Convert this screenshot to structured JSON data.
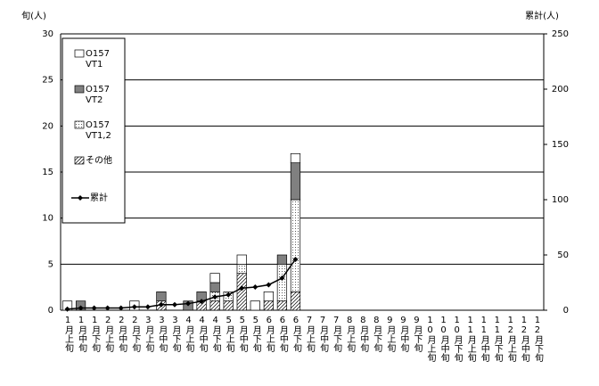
{
  "chart_data": {
    "type": "bar",
    "stacked": true,
    "y_label": "旬(人)",
    "y2_label": "累計(人)",
    "categories": [
      "1月上旬",
      "1月中旬",
      "1月下旬",
      "2月上旬",
      "2月中旬",
      "2月下旬",
      "3月上旬",
      "3月中旬",
      "3月下旬",
      "4月上旬",
      "4月中旬",
      "4月下旬",
      "5月上旬",
      "5月中旬",
      "5月下旬",
      "6月上旬",
      "6月中旬",
      "6月下旬",
      "7月上旬",
      "7月中旬",
      "7月下旬",
      "8月上旬",
      "8月中旬",
      "8月下旬",
      "9月上旬",
      "9月中旬",
      "9月下旬",
      "10月上旬",
      "10月中旬",
      "10月下旬",
      "11月上旬",
      "11月中旬",
      "11月下旬",
      "12月上旬",
      "12月中旬",
      "12月下旬"
    ],
    "series": [
      {
        "name": "その他",
        "color": "hatch",
        "values": [
          0,
          0,
          0,
          0,
          0,
          0,
          0,
          1,
          0,
          0,
          1,
          1,
          1,
          4,
          0,
          1,
          1,
          2,
          0,
          0,
          0,
          0,
          0,
          0,
          0,
          0,
          0,
          0,
          0,
          0,
          0,
          0,
          0,
          0,
          0,
          0
        ]
      },
      {
        "name": "O157 VT1,2",
        "color": "dots",
        "values": [
          0,
          0,
          0,
          0,
          0,
          0,
          0,
          0,
          0,
          0,
          0,
          1,
          1,
          1,
          0,
          0,
          4,
          10,
          0,
          0,
          0,
          0,
          0,
          0,
          0,
          0,
          0,
          0,
          0,
          0,
          0,
          0,
          0,
          0,
          0,
          0
        ]
      },
      {
        "name": "O157 VT2",
        "color": "#808080",
        "values": [
          0,
          1,
          0,
          0,
          0,
          0,
          0,
          1,
          0,
          1,
          1,
          1,
          0,
          0,
          0,
          0,
          1,
          4,
          0,
          0,
          0,
          0,
          0,
          0,
          0,
          0,
          0,
          0,
          0,
          0,
          0,
          0,
          0,
          0,
          0,
          0
        ]
      },
      {
        "name": "O157 VT1",
        "color": "#ffffff",
        "values": [
          1,
          0,
          0,
          0,
          0,
          1,
          0,
          0,
          0,
          0,
          0,
          1,
          0,
          1,
          1,
          1,
          0,
          1,
          0,
          0,
          0,
          0,
          0,
          0,
          0,
          0,
          0,
          0,
          0,
          0,
          0,
          0,
          0,
          0,
          0,
          0
        ]
      },
      {
        "name": "累計",
        "type": "line",
        "axis": "y2",
        "color": "#000000",
        "values": [
          1,
          2,
          2,
          2,
          2,
          3,
          3,
          5,
          5,
          6,
          8,
          12,
          14,
          20,
          21,
          23,
          29,
          46,
          null,
          null,
          null,
          null,
          null,
          null,
          null,
          null,
          null,
          null,
          null,
          null,
          null,
          null,
          null,
          null,
          null,
          null
        ]
      }
    ],
    "ylim": [
      0,
      30
    ],
    "yticks": [
      0,
      5,
      10,
      15,
      20,
      25,
      30
    ],
    "y2lim": [
      0,
      250
    ],
    "y2ticks": [
      0,
      50,
      100,
      150,
      200,
      250
    ],
    "grid": true,
    "legend": "upper left"
  }
}
